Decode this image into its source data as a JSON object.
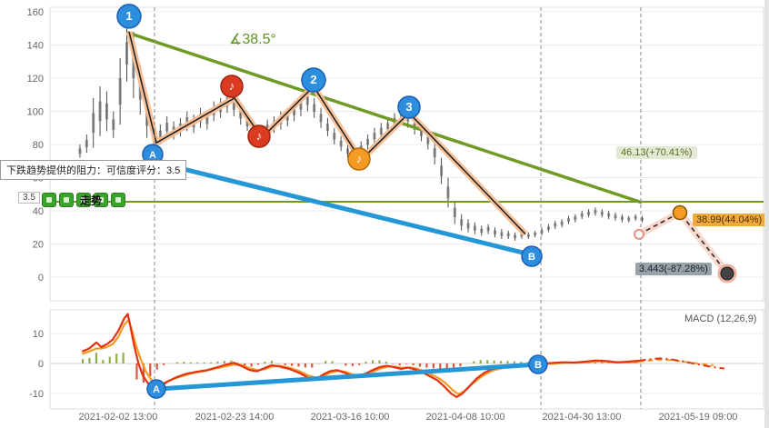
{
  "overlays": {
    "tooltip": "下跌趋势提供的阻力：可信度评分：3.5",
    "confidence": "3.5",
    "legend_text": "走势",
    "angle_label": "∡38.5°",
    "level_label": "46.13(+70.41%)",
    "target_up_label": "38.99(44.04%)",
    "target_down_label": "3.443(-87.28%)"
  },
  "colors": {
    "trend_green": "#6f9a24",
    "support_blue": "#2596d6",
    "wave_peach": "#f6bd92",
    "dif_red": "#e23311",
    "dea_orange": "#f59b25",
    "hist_green": "#7aa32a",
    "hist_red": "#cc3b1e"
  },
  "chart_data": {
    "type": "candlestick",
    "title": "",
    "x_ticks": [
      {
        "f": 0.0955,
        "label": "2021-02-02 13:00"
      },
      {
        "f": 0.2586,
        "label": "2021-02-23 14:00"
      },
      {
        "f": 0.4204,
        "label": "2021-03-16 10:00"
      },
      {
        "f": 0.5822,
        "label": "2021-04-08 10:00"
      },
      {
        "f": 0.7452,
        "label": "2021-04-30 13:00"
      },
      {
        "f": 0.9083,
        "label": "2021-05-19 09:00"
      }
    ],
    "price_axis": {
      "ticks": [
        0,
        20,
        40,
        60,
        80,
        100,
        120,
        140,
        160
      ],
      "ylim": [
        0,
        160
      ]
    },
    "candles": {
      "f0": 0.042,
      "df": 0.00938,
      "hl": [
        [
          80,
          72
        ],
        [
          86,
          75
        ],
        [
          108,
          78
        ],
        [
          115,
          85
        ],
        [
          112,
          88
        ],
        [
          100,
          84
        ],
        [
          132,
          92
        ],
        [
          152,
          118
        ],
        [
          148,
          108
        ],
        [
          128,
          98
        ],
        [
          108,
          84
        ],
        [
          96,
          76
        ],
        [
          92,
          80
        ],
        [
          97,
          84
        ],
        [
          94,
          83
        ],
        [
          96,
          85
        ],
        [
          100,
          88
        ],
        [
          98,
          87
        ],
        [
          102,
          90
        ],
        [
          100,
          89
        ],
        [
          106,
          94
        ],
        [
          108,
          96
        ],
        [
          112,
          99
        ],
        [
          110,
          97
        ],
        [
          104,
          92
        ],
        [
          98,
          88
        ],
        [
          92,
          83
        ],
        [
          90,
          82
        ],
        [
          95,
          85
        ],
        [
          97,
          87
        ],
        [
          100,
          89
        ],
        [
          102,
          91
        ],
        [
          106,
          94
        ],
        [
          110,
          97
        ],
        [
          113,
          100
        ],
        [
          108,
          96
        ],
        [
          102,
          90
        ],
        [
          96,
          85
        ],
        [
          90,
          80
        ],
        [
          85,
          76
        ],
        [
          80,
          72
        ],
        [
          78,
          70
        ],
        [
          82,
          73
        ],
        [
          86,
          77
        ],
        [
          90,
          80
        ],
        [
          93,
          83
        ],
        [
          96,
          86
        ],
        [
          99,
          89
        ],
        [
          102,
          92
        ],
        [
          103,
          90
        ],
        [
          96,
          86
        ],
        [
          92,
          82
        ],
        [
          88,
          77
        ],
        [
          82,
          68
        ],
        [
          72,
          56
        ],
        [
          60,
          42
        ],
        [
          46,
          32
        ],
        [
          38,
          28
        ],
        [
          35,
          27
        ],
        [
          33,
          26
        ],
        [
          31,
          25
        ],
        [
          32,
          26
        ],
        [
          30,
          24
        ],
        [
          29,
          23
        ],
        [
          28,
          23
        ],
        [
          27,
          22
        ],
        [
          28,
          23
        ],
        [
          27,
          23
        ],
        [
          28,
          24
        ],
        [
          30,
          25
        ],
        [
          32,
          27
        ],
        [
          34,
          29
        ],
        [
          35,
          30
        ],
        [
          37,
          32
        ],
        [
          38,
          33
        ],
        [
          40,
          35
        ],
        [
          41,
          36
        ],
        [
          42,
          37
        ],
        [
          41,
          36
        ],
        [
          40,
          35
        ],
        [
          39,
          34
        ],
        [
          38,
          33
        ],
        [
          37,
          33
        ],
        [
          38,
          34
        ],
        [
          37,
          33
        ]
      ]
    },
    "wave_path": [
      [
        0.1108,
        148
      ],
      [
        0.149,
        81
      ],
      [
        0.2586,
        108
      ],
      [
        0.2968,
        84
      ],
      [
        0.3694,
        115
      ],
      [
        0.4357,
        70.5
      ],
      [
        0.5032,
        99
      ],
      [
        0.6662,
        26
      ]
    ],
    "wave_markers": [
      {
        "name": "wave-1",
        "label": "1",
        "f": 0.1108,
        "v": 157.3,
        "r": 13,
        "style": "blue"
      },
      {
        "name": "wave-2",
        "label": "2",
        "f": 0.3694,
        "v": 118.9,
        "r": 13,
        "style": "blue"
      },
      {
        "name": "wave-3",
        "label": "3",
        "f": 0.5032,
        "v": 102.5,
        "r": 12,
        "style": "blue"
      },
      {
        "name": "point-a",
        "label": "A",
        "f": 0.1439,
        "v": 74,
        "r": 11,
        "style": "blue"
      },
      {
        "name": "point-b",
        "label": "B",
        "f": 0.6752,
        "v": 12.6,
        "r": 11,
        "style": "blue"
      },
      {
        "name": "note-1",
        "label": "♪",
        "f": 0.2548,
        "v": 115.1,
        "r": 12,
        "style": "red"
      },
      {
        "name": "note-2",
        "label": "♪",
        "f": 0.293,
        "v": 84.9,
        "r": 12,
        "style": "red"
      },
      {
        "name": "note-3",
        "label": "♪",
        "f": 0.4331,
        "v": 71.2,
        "r": 12,
        "style": "orange"
      }
    ],
    "support_line": [
      [
        0.1465,
        69.5
      ],
      [
        0.6752,
        13.5
      ]
    ],
    "trend_line": [
      [
        0.1083,
        147.5
      ],
      [
        0.8293,
        45
      ]
    ],
    "trend_angle_deg": 38.5,
    "level_value": 45.5,
    "level_price": 46.13,
    "target_up_price": 38.99,
    "target_down_price": 3.443,
    "event_lines_f": [
      0.1465,
      0.688,
      0.828
    ],
    "projection": {
      "path": [
        [
          0.8255,
          25.8
        ],
        [
          0.8828,
          38.9
        ],
        [
          0.949,
          2.2
        ]
      ],
      "points": [
        {
          "f": 0.8255,
          "v": 25.8,
          "style": "start"
        },
        {
          "f": 0.8828,
          "v": 38.9,
          "style": "target-up"
        },
        {
          "f": 0.949,
          "v": 2.2,
          "style": "target-down"
        }
      ]
    },
    "macd": {
      "title": "MACD (12,26,9)",
      "ticks": [
        -10,
        0,
        10
      ],
      "hist_scale": 1.8,
      "dif": [
        [
          0.045,
          4
        ],
        [
          0.055,
          5
        ],
        [
          0.065,
          7
        ],
        [
          0.072,
          5.5
        ],
        [
          0.08,
          6.5
        ],
        [
          0.088,
          8
        ],
        [
          0.096,
          11
        ],
        [
          0.104,
          15
        ],
        [
          0.109,
          16.5
        ],
        [
          0.113,
          12
        ],
        [
          0.118,
          6
        ],
        [
          0.124,
          0
        ],
        [
          0.13,
          -4
        ],
        [
          0.137,
          -6.5
        ],
        [
          0.147,
          -8.8
        ],
        [
          0.155,
          -7.5
        ],
        [
          0.165,
          -6
        ],
        [
          0.178,
          -4.5
        ],
        [
          0.19,
          -3.5
        ],
        [
          0.205,
          -2.8
        ],
        [
          0.22,
          -2.2
        ],
        [
          0.235,
          -1.2
        ],
        [
          0.248,
          -0.3
        ],
        [
          0.258,
          0.2
        ],
        [
          0.268,
          -0.8
        ],
        [
          0.28,
          -2.2
        ],
        [
          0.29,
          -2.6
        ],
        [
          0.3,
          -1.6
        ],
        [
          0.31,
          -0.6
        ],
        [
          0.32,
          -0.9
        ],
        [
          0.335,
          -1.8
        ],
        [
          0.35,
          -3.2
        ],
        [
          0.362,
          -4.8
        ],
        [
          0.372,
          -5.4
        ],
        [
          0.382,
          -3.8
        ],
        [
          0.392,
          -2.6
        ],
        [
          0.402,
          -2.2
        ],
        [
          0.412,
          -3
        ],
        [
          0.422,
          -4
        ],
        [
          0.432,
          -4.4
        ],
        [
          0.442,
          -3.4
        ],
        [
          0.452,
          -2.2
        ],
        [
          0.462,
          -1.2
        ],
        [
          0.472,
          -0.8
        ],
        [
          0.482,
          -1.2
        ],
        [
          0.492,
          -1.8
        ],
        [
          0.502,
          -1.4
        ],
        [
          0.512,
          -2
        ],
        [
          0.522,
          -3
        ],
        [
          0.532,
          -4.2
        ],
        [
          0.542,
          -5.5
        ],
        [
          0.552,
          -7.5
        ],
        [
          0.562,
          -10
        ],
        [
          0.57,
          -11.2
        ],
        [
          0.578,
          -10
        ],
        [
          0.588,
          -7.5
        ],
        [
          0.598,
          -5
        ],
        [
          0.608,
          -3.2
        ],
        [
          0.618,
          -2
        ],
        [
          0.63,
          -1.2
        ],
        [
          0.645,
          -0.6
        ],
        [
          0.66,
          -0.4
        ],
        [
          0.675,
          -0.2
        ],
        [
          0.69,
          -0.1
        ],
        [
          0.705,
          0.2
        ],
        [
          0.72,
          0.4
        ],
        [
          0.735,
          0.3
        ],
        [
          0.75,
          0.6
        ],
        [
          0.765,
          1
        ],
        [
          0.78,
          0.8
        ],
        [
          0.795,
          0.4
        ],
        [
          0.81,
          0.6
        ],
        [
          0.825,
          0.9
        ]
      ],
      "dea": [
        [
          0.045,
          3.2
        ],
        [
          0.055,
          4
        ],
        [
          0.065,
          5
        ],
        [
          0.072,
          5
        ],
        [
          0.08,
          5.5
        ],
        [
          0.088,
          6.5
        ],
        [
          0.096,
          9
        ],
        [
          0.104,
          13
        ],
        [
          0.11,
          14.5
        ],
        [
          0.115,
          11
        ],
        [
          0.12,
          6.5
        ],
        [
          0.127,
          1.5
        ],
        [
          0.134,
          -2.5
        ],
        [
          0.142,
          -5.5
        ],
        [
          0.15,
          -7.2
        ],
        [
          0.16,
          -6.5
        ],
        [
          0.172,
          -5.2
        ],
        [
          0.185,
          -4.2
        ],
        [
          0.2,
          -3.2
        ],
        [
          0.215,
          -2.6
        ],
        [
          0.23,
          -1.8
        ],
        [
          0.245,
          -1
        ],
        [
          0.257,
          -0.4
        ],
        [
          0.268,
          -0.5
        ],
        [
          0.28,
          -1.6
        ],
        [
          0.292,
          -2.2
        ],
        [
          0.302,
          -1.8
        ],
        [
          0.312,
          -1
        ],
        [
          0.322,
          -0.8
        ],
        [
          0.335,
          -1.4
        ],
        [
          0.35,
          -2.6
        ],
        [
          0.362,
          -4
        ],
        [
          0.374,
          -4.8
        ],
        [
          0.384,
          -4
        ],
        [
          0.394,
          -3
        ],
        [
          0.404,
          -2.4
        ],
        [
          0.414,
          -2.8
        ],
        [
          0.424,
          -3.6
        ],
        [
          0.434,
          -4
        ],
        [
          0.444,
          -3.6
        ],
        [
          0.454,
          -2.6
        ],
        [
          0.464,
          -1.6
        ],
        [
          0.474,
          -1
        ],
        [
          0.484,
          -1.1
        ],
        [
          0.494,
          -1.5
        ],
        [
          0.504,
          -1.3
        ],
        [
          0.514,
          -1.7
        ],
        [
          0.524,
          -2.5
        ],
        [
          0.534,
          -3.6
        ],
        [
          0.544,
          -4.8
        ],
        [
          0.554,
          -6.5
        ],
        [
          0.564,
          -8.8
        ],
        [
          0.572,
          -10.2
        ],
        [
          0.58,
          -9.4
        ],
        [
          0.59,
          -7.2
        ],
        [
          0.6,
          -5.2
        ],
        [
          0.61,
          -3.6
        ],
        [
          0.62,
          -2.4
        ],
        [
          0.632,
          -1.6
        ],
        [
          0.647,
          -1
        ],
        [
          0.662,
          -0.7
        ],
        [
          0.677,
          -0.4
        ],
        [
          0.692,
          -0.2
        ],
        [
          0.707,
          0
        ],
        [
          0.722,
          0.2
        ],
        [
          0.737,
          0.2
        ],
        [
          0.752,
          0.4
        ],
        [
          0.767,
          0.7
        ],
        [
          0.782,
          0.6
        ],
        [
          0.797,
          0.3
        ],
        [
          0.812,
          0.4
        ],
        [
          0.825,
          0.6
        ]
      ],
      "dif_proj": [
        [
          0.825,
          0.9
        ],
        [
          0.84,
          1.4
        ],
        [
          0.855,
          1.7
        ],
        [
          0.87,
          1.4
        ],
        [
          0.885,
          0.8
        ],
        [
          0.9,
          0.1
        ],
        [
          0.915,
          -0.6
        ],
        [
          0.93,
          -1.2
        ],
        [
          0.945,
          -1.7
        ]
      ],
      "dea_proj": [
        [
          0.825,
          0.6
        ],
        [
          0.84,
          1
        ],
        [
          0.855,
          1.3
        ],
        [
          0.87,
          1.1
        ],
        [
          0.885,
          0.7
        ],
        [
          0.9,
          0.2
        ],
        [
          0.915,
          -0.2
        ],
        [
          0.93,
          -0.6
        ]
      ],
      "ab_line": [
        [
          0.149,
          -8.5
        ],
        [
          0.684,
          -0.3
        ]
      ],
      "markers": [
        {
          "name": "macd-a",
          "label": "A",
          "f": 0.149,
          "v": -8.5,
          "r": 10,
          "style": "blue"
        },
        {
          "name": "macd-b",
          "label": "B",
          "f": 0.684,
          "v": -0.3,
          "r": 10,
          "style": "blue"
        }
      ]
    }
  }
}
